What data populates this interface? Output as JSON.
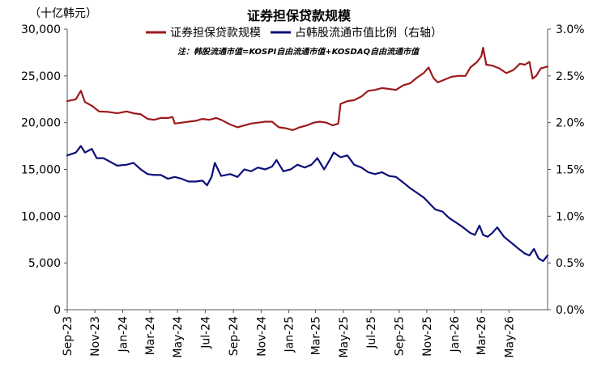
{
  "chart_data": {
    "type": "line",
    "title": "证券担保贷款规模",
    "y_unit_label": "（十亿韩元）",
    "note": "注：韩股流通市值=KOSPI自由流通市值+KOSDAQ自由流通市值",
    "legend_position": "top-center",
    "grid": false,
    "x_ticks": [
      "Sep-23",
      "Nov-23",
      "Jan-24",
      "Mar-24",
      "May-24",
      "Jul-24",
      "Sep-24",
      "Nov-24",
      "Jan-25",
      "Mar-25",
      "May-25",
      "Jul-25",
      "Sep-25",
      "Nov-25",
      "Jan-26",
      "Mar-26",
      "May-26"
    ],
    "x_range": [
      "2023-09-01",
      "2026-07-25"
    ],
    "y_left": {
      "range": [
        0,
        30000
      ],
      "ticks": [
        "0",
        "5,000",
        "10,000",
        "15,000",
        "20,000",
        "25,000",
        "30,000"
      ]
    },
    "y_right": {
      "range": [
        0,
        3.0
      ],
      "ticks": [
        "0.0%",
        "0.5%",
        "1.0%",
        "1.5%",
        "2.0%",
        "2.5%",
        "3.0%"
      ]
    },
    "series": [
      {
        "name": "证券担保贷款规模",
        "axis": "left",
        "color": "#9c1a1c",
        "points": [
          [
            "2023-09-01",
            22300
          ],
          [
            "2023-09-20",
            22500
          ],
          [
            "2023-10-01",
            23400
          ],
          [
            "2023-10-10",
            22200
          ],
          [
            "2023-10-25",
            21800
          ],
          [
            "2023-11-10",
            21200
          ],
          [
            "2023-12-01",
            21150
          ],
          [
            "2023-12-20",
            21000
          ],
          [
            "2024-01-10",
            21200
          ],
          [
            "2024-01-25",
            21000
          ],
          [
            "2024-02-10",
            20900
          ],
          [
            "2024-02-25",
            20400
          ],
          [
            "2024-03-10",
            20300
          ],
          [
            "2024-03-25",
            20500
          ],
          [
            "2024-04-10",
            20500
          ],
          [
            "2024-04-20",
            20600
          ],
          [
            "2024-04-25",
            19900
          ],
          [
            "2024-05-10",
            20000
          ],
          [
            "2024-05-25",
            20100
          ],
          [
            "2024-06-10",
            20200
          ],
          [
            "2024-06-25",
            20400
          ],
          [
            "2024-07-10",
            20300
          ],
          [
            "2024-07-25",
            20500
          ],
          [
            "2024-08-05",
            20300
          ],
          [
            "2024-08-25",
            19800
          ],
          [
            "2024-09-10",
            19500
          ],
          [
            "2024-09-25",
            19700
          ],
          [
            "2024-10-10",
            19900
          ],
          [
            "2024-10-25",
            20000
          ],
          [
            "2024-11-10",
            20100
          ],
          [
            "2024-11-25",
            20100
          ],
          [
            "2024-12-10",
            19500
          ],
          [
            "2024-12-25",
            19400
          ],
          [
            "2025-01-10",
            19200
          ],
          [
            "2025-01-25",
            19500
          ],
          [
            "2025-02-10",
            19700
          ],
          [
            "2025-02-25",
            20000
          ],
          [
            "2025-03-10",
            20100
          ],
          [
            "2025-03-25",
            20000
          ],
          [
            "2025-04-08",
            19700
          ],
          [
            "2025-04-20",
            19900
          ],
          [
            "2025-04-25",
            22000
          ],
          [
            "2025-05-10",
            22300
          ],
          [
            "2025-05-25",
            22400
          ],
          [
            "2025-06-10",
            22800
          ],
          [
            "2025-06-25",
            23400
          ],
          [
            "2025-07-10",
            23500
          ],
          [
            "2025-07-25",
            23700
          ],
          [
            "2025-08-10",
            23600
          ],
          [
            "2025-08-25",
            23500
          ],
          [
            "2025-09-10",
            24000
          ],
          [
            "2025-09-25",
            24200
          ],
          [
            "2025-10-10",
            24800
          ],
          [
            "2025-10-25",
            25300
          ],
          [
            "2025-11-05",
            25900
          ],
          [
            "2025-11-15",
            24800
          ],
          [
            "2025-11-25",
            24300
          ],
          [
            "2025-12-10",
            24600
          ],
          [
            "2025-12-25",
            24900
          ],
          [
            "2026-01-10",
            25000
          ],
          [
            "2026-01-25",
            25000
          ],
          [
            "2026-02-05",
            25900
          ],
          [
            "2026-02-20",
            26500
          ],
          [
            "2026-03-01",
            27100
          ],
          [
            "2026-03-05",
            28000
          ],
          [
            "2026-03-12",
            26200
          ],
          [
            "2026-03-25",
            26100
          ],
          [
            "2026-04-10",
            25800
          ],
          [
            "2026-04-25",
            25300
          ],
          [
            "2026-05-10",
            25600
          ],
          [
            "2026-05-25",
            26300
          ],
          [
            "2026-06-05",
            26200
          ],
          [
            "2026-06-15",
            26500
          ],
          [
            "2026-06-22",
            24700
          ],
          [
            "2026-06-30",
            25000
          ],
          [
            "2026-07-10",
            25800
          ],
          [
            "2026-07-25",
            26000
          ]
        ]
      },
      {
        "name": "占韩股流通市值比例（右轴）",
        "axis": "right",
        "color": "#0c0f78",
        "points": [
          [
            "2023-09-01",
            1.65
          ],
          [
            "2023-09-20",
            1.68
          ],
          [
            "2023-10-01",
            1.75
          ],
          [
            "2023-10-10",
            1.68
          ],
          [
            "2023-10-25",
            1.72
          ],
          [
            "2023-11-05",
            1.62
          ],
          [
            "2023-11-20",
            1.62
          ],
          [
            "2023-12-05",
            1.58
          ],
          [
            "2023-12-20",
            1.54
          ],
          [
            "2024-01-10",
            1.55
          ],
          [
            "2024-01-25",
            1.57
          ],
          [
            "2024-02-10",
            1.5
          ],
          [
            "2024-02-25",
            1.45
          ],
          [
            "2024-03-10",
            1.44
          ],
          [
            "2024-03-25",
            1.44
          ],
          [
            "2024-04-10",
            1.4
          ],
          [
            "2024-04-25",
            1.42
          ],
          [
            "2024-05-10",
            1.4
          ],
          [
            "2024-05-25",
            1.37
          ],
          [
            "2024-06-10",
            1.37
          ],
          [
            "2024-06-25",
            1.38
          ],
          [
            "2024-07-05",
            1.33
          ],
          [
            "2024-07-15",
            1.42
          ],
          [
            "2024-07-22",
            1.57
          ],
          [
            "2024-08-05",
            1.43
          ],
          [
            "2024-08-25",
            1.45
          ],
          [
            "2024-09-10",
            1.42
          ],
          [
            "2024-09-25",
            1.5
          ],
          [
            "2024-10-10",
            1.48
          ],
          [
            "2024-10-25",
            1.52
          ],
          [
            "2024-11-10",
            1.5
          ],
          [
            "2024-11-25",
            1.53
          ],
          [
            "2024-12-05",
            1.6
          ],
          [
            "2024-12-20",
            1.48
          ],
          [
            "2025-01-05",
            1.5
          ],
          [
            "2025-01-20",
            1.55
          ],
          [
            "2025-02-05",
            1.52
          ],
          [
            "2025-02-20",
            1.55
          ],
          [
            "2025-03-05",
            1.62
          ],
          [
            "2025-03-20",
            1.5
          ],
          [
            "2025-04-01",
            1.6
          ],
          [
            "2025-04-10",
            1.68
          ],
          [
            "2025-04-25",
            1.63
          ],
          [
            "2025-05-10",
            1.65
          ],
          [
            "2025-05-25",
            1.55
          ],
          [
            "2025-06-10",
            1.52
          ],
          [
            "2025-06-25",
            1.47
          ],
          [
            "2025-07-10",
            1.45
          ],
          [
            "2025-07-25",
            1.47
          ],
          [
            "2025-08-10",
            1.43
          ],
          [
            "2025-08-25",
            1.42
          ],
          [
            "2025-09-10",
            1.36
          ],
          [
            "2025-09-25",
            1.3
          ],
          [
            "2025-10-10",
            1.25
          ],
          [
            "2025-10-25",
            1.2
          ],
          [
            "2025-11-10",
            1.12
          ],
          [
            "2025-11-20",
            1.07
          ],
          [
            "2025-12-05",
            1.05
          ],
          [
            "2025-12-20",
            0.98
          ],
          [
            "2026-01-05",
            0.93
          ],
          [
            "2026-01-20",
            0.88
          ],
          [
            "2026-02-05",
            0.82
          ],
          [
            "2026-02-15",
            0.8
          ],
          [
            "2026-02-25",
            0.9
          ],
          [
            "2026-03-05",
            0.8
          ],
          [
            "2026-03-15",
            0.78
          ],
          [
            "2026-03-25",
            0.82
          ],
          [
            "2026-04-05",
            0.88
          ],
          [
            "2026-04-20",
            0.78
          ],
          [
            "2026-05-05",
            0.72
          ],
          [
            "2026-05-20",
            0.66
          ],
          [
            "2026-06-05",
            0.6
          ],
          [
            "2026-06-15",
            0.58
          ],
          [
            "2026-06-25",
            0.65
          ],
          [
            "2026-07-05",
            0.55
          ],
          [
            "2026-07-15",
            0.52
          ],
          [
            "2026-07-25",
            0.58
          ]
        ]
      }
    ]
  }
}
